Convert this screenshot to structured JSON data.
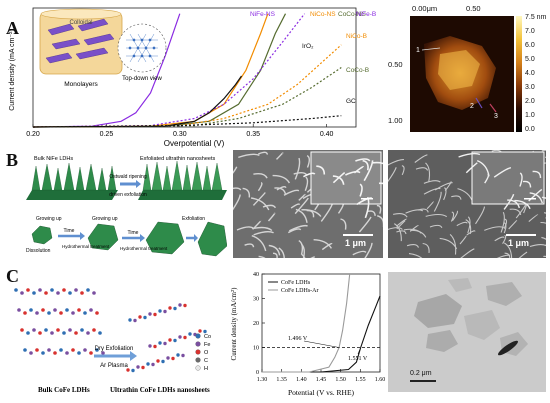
{
  "panels": {
    "A": {
      "letter": "A",
      "inset": {
        "colloidal": "Colloidal",
        "monolayers": "Monolayers",
        "top_down": "Top-down view"
      },
      "chart_data": {
        "type": "line",
        "xlabel": "Overpotential (V)",
        "ylabel": "Current density (mA cm⁻²)",
        "xlim": [
          0.2,
          0.42
        ],
        "xticks": [
          "0.20",
          "0.25",
          "0.30",
          "0.35",
          "0.40"
        ],
        "series": [
          {
            "name": "NiFe-NS",
            "color": "#8a2be2",
            "dash": false,
            "x": [
              0.2,
              0.24,
              0.26,
              0.27,
              0.28,
              0.29,
              0.3
            ],
            "y": [
              0,
              0.3,
              2,
              5,
              12,
              25,
              40
            ]
          },
          {
            "name": "NiCo-NS",
            "color": "#f28c00",
            "dash": false,
            "x": [
              0.2,
              0.28,
              0.31,
              0.33,
              0.345,
              0.355,
              0.36
            ],
            "y": [
              0,
              0.3,
              2,
              8,
              20,
              33,
              40
            ]
          },
          {
            "name": "CoCo-NS",
            "color": "#556b2f",
            "dash": false,
            "x": [
              0.2,
              0.29,
              0.32,
              0.34,
              0.355,
              0.365,
              0.372
            ],
            "y": [
              0,
              0.3,
              2,
              8,
              20,
              33,
              40
            ]
          },
          {
            "name": "NiFe-B",
            "color": "#8a2be2",
            "dash": true,
            "x": [
              0.2,
              0.28,
              0.31,
              0.33,
              0.35,
              0.37,
              0.385
            ],
            "y": [
              0,
              0.5,
              3,
              8,
              17,
              30,
              40
            ]
          },
          {
            "name": "IrO₂",
            "color": "#111111",
            "dash": false,
            "x": [
              0.2,
              0.29,
              0.31,
              0.32,
              0.33,
              0.338,
              0.342
            ],
            "y": [
              0,
              0.3,
              2,
              5,
              10,
              15,
              18
            ]
          },
          {
            "name": "NiCo-B",
            "color": "#f28c00",
            "dash": true,
            "x": [
              0.2,
              0.3,
              0.33,
              0.36,
              0.38,
              0.395,
              0.41
            ],
            "y": [
              0,
              0.5,
              3,
              8,
              15,
              22,
              29
            ]
          },
          {
            "name": "CoCo-B",
            "color": "#556b2f",
            "dash": true,
            "x": [
              0.2,
              0.31,
              0.34,
              0.37,
              0.39,
              0.41
            ],
            "y": [
              0,
              0.5,
              3,
              8,
              14,
              21
            ]
          },
          {
            "name": "GC",
            "color": "#111111",
            "dash": true,
            "x": [
              0.2,
              0.3,
              0.35,
              0.39,
              0.41
            ],
            "y": [
              0,
              0.5,
              1.5,
              3,
              4
            ]
          }
        ]
      },
      "afm": {
        "x_axis_start": "0.00μm",
        "x_axis_mid": "0.50",
        "y_ticks": [
          "0.50",
          "1.00"
        ],
        "colorbar_ticks": [
          "7.5 nm",
          "7.0",
          "6.0",
          "5.0",
          "4.0",
          "3.0",
          "2.0",
          "1.0",
          "0.0"
        ],
        "markers": [
          "1",
          "2",
          "3"
        ]
      }
    },
    "B": {
      "letter": "B",
      "schematic": {
        "bulk": "Bulk NiFe LDHs",
        "exfoliated": "Exfoliated ultrathin nanosheets",
        "ostwald": "Ostwald ripening",
        "driven": "driven exfoliation",
        "growing_up_1": "Growing up",
        "dissolution": "Dissolution",
        "growing_up_2": "Growing up",
        "time_1": "Time",
        "time_2": "Time",
        "hydro_1": "Hydrothermal treatment",
        "hydro_2": "Hydrothermal treatment",
        "exfoliation": "Exfoliation"
      },
      "sem_left_scale": "1 μm",
      "sem_right_scale": "1 μm"
    },
    "C": {
      "letter": "C",
      "schematic": {
        "dry_exfoliation": "Dry Exfoliation",
        "ar_plasma": "Ar Plasma",
        "bulk_label": "Bulk CoFe LDHs",
        "ultrathin_label": "Ultrathin CoFe LDHs nanosheets",
        "legend": [
          {
            "symbol": "Co",
            "color": "#2f6fb3"
          },
          {
            "symbol": "Fe",
            "color": "#7a4fa0"
          },
          {
            "symbol": "O",
            "color": "#d8322f"
          },
          {
            "symbol": "C",
            "color": "#6a6a6a"
          },
          {
            "symbol": "H",
            "color": "#e8e8e8"
          }
        ]
      },
      "chart_data": {
        "type": "line",
        "xlabel": "Potential (V vs. RHE)",
        "ylabel": "Current density (mA/cm²)",
        "xlim": [
          1.3,
          1.6
        ],
        "ylim": [
          0,
          40
        ],
        "xticks": [
          "1.30",
          "1.35",
          "1.40",
          "1.45",
          "1.50",
          "1.55",
          "1.60"
        ],
        "yticks": [
          "0",
          "10",
          "20",
          "30",
          "40"
        ],
        "legend": [
          "CoFe LDHs",
          "CoFe LDHs-Ar"
        ],
        "series": [
          {
            "name": "CoFe LDHs",
            "color": "#111111",
            "x": [
              1.3,
              1.45,
              1.52,
              1.54,
              1.551,
              1.57,
              1.59,
              1.6
            ],
            "y": [
              0,
              0,
              1,
              4,
              10,
              19,
              27,
              31
            ]
          },
          {
            "name": "CoFe LDHs-Ar",
            "color": "#9a9a9a",
            "x": [
              1.3,
              1.42,
              1.47,
              1.485,
              1.496,
              1.505,
              1.515,
              1.523
            ],
            "y": [
              0,
              0,
              2,
              6,
              10,
              17,
              28,
              40
            ]
          }
        ],
        "annotations": [
          "1.496 V",
          "1.551 V"
        ],
        "reference_line_y": 10
      },
      "tem_scale": "0.2 μm"
    }
  }
}
